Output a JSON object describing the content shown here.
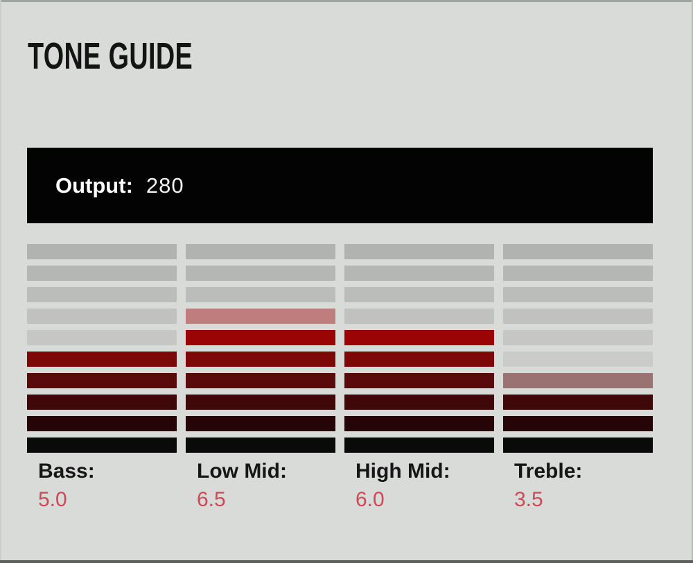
{
  "title": "TONE GUIDE",
  "output": {
    "label": "Output:",
    "value": "280"
  },
  "meter": {
    "rows": 10,
    "channels": [
      {
        "key": "bass",
        "name": "Bass:",
        "value": "5.0",
        "full_segments": 5,
        "half_segment": false
      },
      {
        "key": "low-mid",
        "name": "Low Mid:",
        "value": "6.5",
        "full_segments": 6,
        "half_segment": true
      },
      {
        "key": "high-mid",
        "name": "High Mid:",
        "value": "6.0",
        "full_segments": 6,
        "half_segment": false
      },
      {
        "key": "treble",
        "name": "Treble:",
        "value": "3.5",
        "full_segments": 3,
        "half_segment": true
      }
    ],
    "colors": {
      "panel_background": "#d9dbd9",
      "lit_rows": [
        "#e04040",
        "#cc3232",
        "#b82a2a",
        "#a52222",
        "#9a0404",
        "#7c0808",
        "#5a0a0a",
        "#400808",
        "#250505",
        "#0a0a0a"
      ],
      "unlit_rows": [
        "#b1b3b1",
        "#b5b7b5",
        "#bbbdbb",
        "#c1c2c0",
        "#c6c7c5",
        "#cbccca",
        "#cfd0ce",
        "#d2d3d1",
        "#d4d5d3",
        "#d6d7d5"
      ],
      "half_segment_opacity": 0.5,
      "value_text": "#cc4956",
      "label_text": "#161616",
      "output_bar": "#030303"
    }
  },
  "chart_data": {
    "type": "bar",
    "title": "TONE GUIDE",
    "categories": [
      "Bass",
      "Low Mid",
      "High Mid",
      "Treble"
    ],
    "values": [
      5.0,
      6.5,
      6.0,
      3.5
    ],
    "ylim": [
      0,
      10
    ],
    "annotations": [
      "Output: 280"
    ],
    "layout": "vertical segmented meters, 10 segments each, lit from bottom; fractional value shown as faded half segment"
  }
}
